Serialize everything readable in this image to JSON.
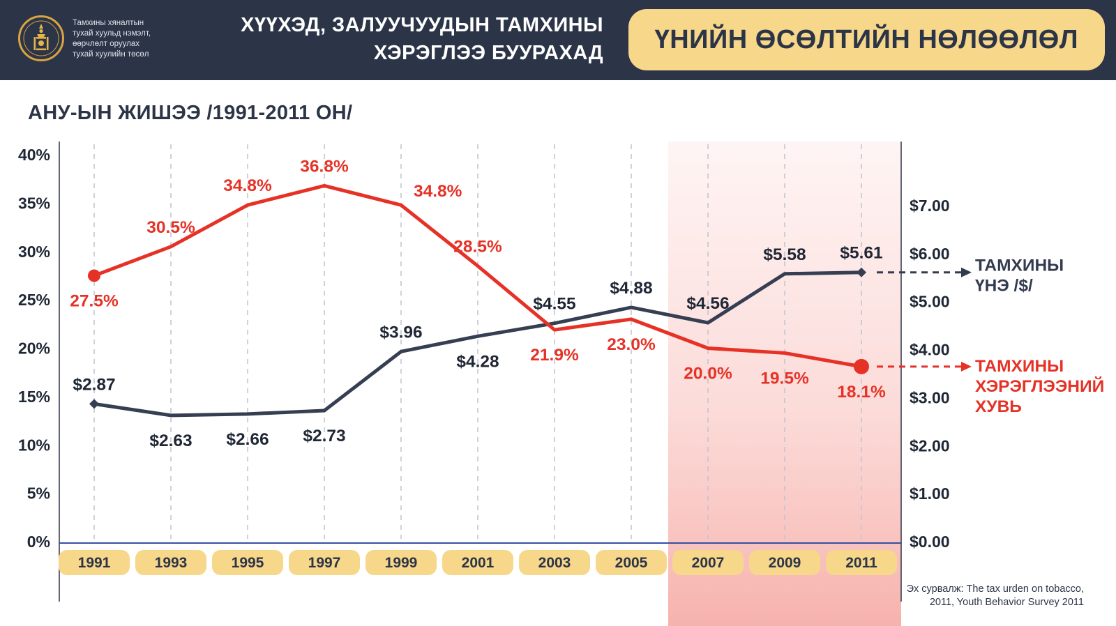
{
  "header": {
    "caption_lines": [
      "Тамхины хяналтын",
      "тухай хуульд нэмэлт,",
      "өөрчлөлт оруулах",
      "тухай хуулийн төсөл"
    ],
    "title_line1": "ХҮҮХЭД, ЗАЛУУЧУУДЫН ТАМХИНЫ",
    "title_line2": "ХЭРЭГЛЭЭ БУУРАХАД",
    "badge": "ҮНИЙН ӨСӨЛТИЙН НӨЛӨӨЛӨЛ"
  },
  "source": {
    "line1": "Эх сурвалж: The tax urden on tobacco,",
    "line2": "2011, Youth Behavior Survey 2011"
  },
  "colors": {
    "navy": "#2c3447",
    "line_navy": "#363e52",
    "red": "#e63226",
    "yellow": "#f7d78a",
    "pink_highlight": "#f5968f",
    "grid": "#bfc3ce",
    "baseline_blue": "#3450a3"
  },
  "chart_data": {
    "type": "line",
    "title": "АНУ-ЫН ЖИШЭЭ /1991-2011 ОН/",
    "categories": [
      "1991",
      "1993",
      "1995",
      "1997",
      "1999",
      "2001",
      "2003",
      "2005",
      "2007",
      "2009",
      "2011"
    ],
    "left_axis": {
      "min": 0,
      "max": 40,
      "step": 5,
      "labels": [
        "0%",
        "5%",
        "10%",
        "15%",
        "20%",
        "25%",
        "30%",
        "35%",
        "40%"
      ],
      "title": ""
    },
    "right_axis": {
      "min": 0,
      "max": 7,
      "step": 1,
      "labels": [
        "$0.00",
        "$1.00",
        "$2.00",
        "$3.00",
        "$4.00",
        "$5.00",
        "$6.00",
        "$7.00"
      ],
      "title": ""
    },
    "series": [
      {
        "name": "ТАМХИНЫ ҮНЭ /$/",
        "axis": "right",
        "color": "#363e52",
        "label_color": "#1f2735",
        "marker": "diamond",
        "values": [
          2.87,
          2.63,
          2.66,
          2.73,
          3.96,
          4.28,
          4.55,
          4.88,
          4.56,
          5.58,
          5.61
        ],
        "labels": [
          "$2.87",
          "$2.63",
          "$2.66",
          "$2.73",
          "$3.96",
          "$4.28",
          "$4.55",
          "$4.88",
          "$4.56",
          "$5.58",
          "$5.61"
        ],
        "label_positions": [
          "above",
          "below",
          "below",
          "below",
          "above",
          "below",
          "above",
          "above",
          "above",
          "above",
          "above"
        ]
      },
      {
        "name": "ТАМХИНЫ ХЭРЭГЛЭЭНИЙ ХУВЬ",
        "axis": "left",
        "color": "#e63226",
        "label_color": "#e63226",
        "marker": "circle",
        "values": [
          27.5,
          30.5,
          34.8,
          36.8,
          34.8,
          28.5,
          21.9,
          23.0,
          20.0,
          19.5,
          18.1
        ],
        "labels": [
          "27.5%",
          "30.5%",
          "34.8%",
          "36.8%",
          "34.8%",
          "28.5%",
          "21.9%",
          "23.0%",
          "20.0%",
          "19.5%",
          "18.1%"
        ],
        "label_positions": [
          "below",
          "above",
          "above",
          "above",
          "right-above",
          "above",
          "below",
          "below",
          "below",
          "below",
          "below"
        ]
      }
    ],
    "highlight_region": {
      "from_x_index": 8,
      "note": "2007-2011 shaded pink"
    },
    "legend": [
      {
        "series": 0,
        "lines": [
          "ТАМХИНЫ",
          "ҮНЭ /$/"
        ],
        "color": "#333b4e"
      },
      {
        "series": 1,
        "lines": [
          "ТАМХИНЫ",
          "ХЭРЭГЛЭЭНИЙ",
          "ХУВЬ"
        ],
        "color": "#e63226"
      }
    ],
    "grid": "vertical-dashed",
    "legend_position": "right"
  }
}
